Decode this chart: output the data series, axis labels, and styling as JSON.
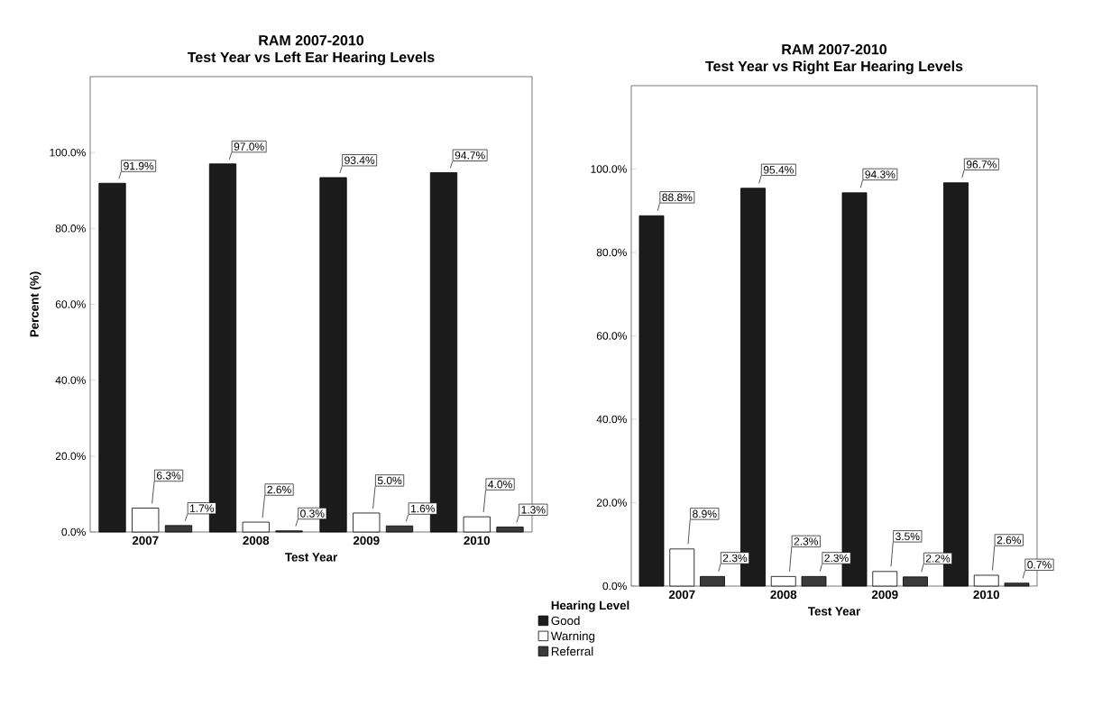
{
  "chart_data": [
    {
      "type": "bar",
      "title": "RAM 2007-2010",
      "subtitle": "Test Year vs Left Ear Hearing Levels",
      "xlabel": "Test Year",
      "ylabel": "Percent (%)",
      "categories": [
        "2007",
        "2008",
        "2009",
        "2010"
      ],
      "series": [
        {
          "name": "Good",
          "color": "#1c1c1c",
          "values": [
            91.9,
            97.0,
            93.4,
            94.7
          ],
          "value_labels": [
            "91.9%",
            "97.0%",
            "93.4%",
            "94.7%"
          ]
        },
        {
          "name": "Warning",
          "color": "#ffffff",
          "values": [
            6.3,
            2.6,
            5.0,
            4.0
          ],
          "value_labels": [
            "6.3%",
            "2.6%",
            "5.0%",
            "4.0%"
          ]
        },
        {
          "name": "Referral",
          "color": "#3a3a3a",
          "values": [
            1.7,
            0.3,
            1.6,
            1.3
          ],
          "value_labels": [
            "1.7%",
            "0.3%",
            "1.6%",
            "1.3%"
          ]
        }
      ],
      "ylim": [
        0,
        120
      ],
      "yticks": [
        {
          "value": 0,
          "label": "0.0%"
        },
        {
          "value": 20,
          "label": "20.0%"
        },
        {
          "value": 40,
          "label": "40.0%"
        },
        {
          "value": 60,
          "label": "60.0%"
        },
        {
          "value": 80,
          "label": "80.0%"
        },
        {
          "value": 100,
          "label": "100.0%"
        }
      ],
      "legend": "bottom right",
      "legend_title": "Hearing Level"
    },
    {
      "type": "bar",
      "title": "RAM 2007-2010",
      "subtitle": "Test Year vs Right Ear Hearing Levels",
      "xlabel": "Test Year",
      "categories": [
        "2007",
        "2008",
        "2009",
        "2010"
      ],
      "series": [
        {
          "color": "#1c1c1c",
          "values": [
            88.8,
            95.4,
            94.3,
            96.7
          ],
          "value_labels": [
            "88.8%",
            "95.4%",
            "94.3%",
            "96.7%"
          ]
        },
        {
          "color": "#ffffff",
          "values": [
            8.9,
            2.3,
            3.5,
            2.6
          ],
          "value_labels": [
            "8.9%",
            "2.3%",
            "3.5%",
            "2.6%"
          ]
        },
        {
          "color": "#3a3a3a",
          "values": [
            2.3,
            2.3,
            2.2,
            0.7
          ],
          "value_labels": [
            "2.3%",
            "2.3%",
            "2.2%",
            "0.7%"
          ]
        }
      ],
      "ylim": [
        0,
        120
      ],
      "yticks": [
        {
          "value": 0,
          "label": "0.0%"
        },
        {
          "value": 20,
          "label": "20.0%"
        },
        {
          "value": 40,
          "label": "40.0%"
        },
        {
          "value": 60,
          "label": "60.0%"
        },
        {
          "value": 80,
          "label": "80.0%"
        },
        {
          "value": 100,
          "label": "100.0%"
        }
      ]
    }
  ]
}
